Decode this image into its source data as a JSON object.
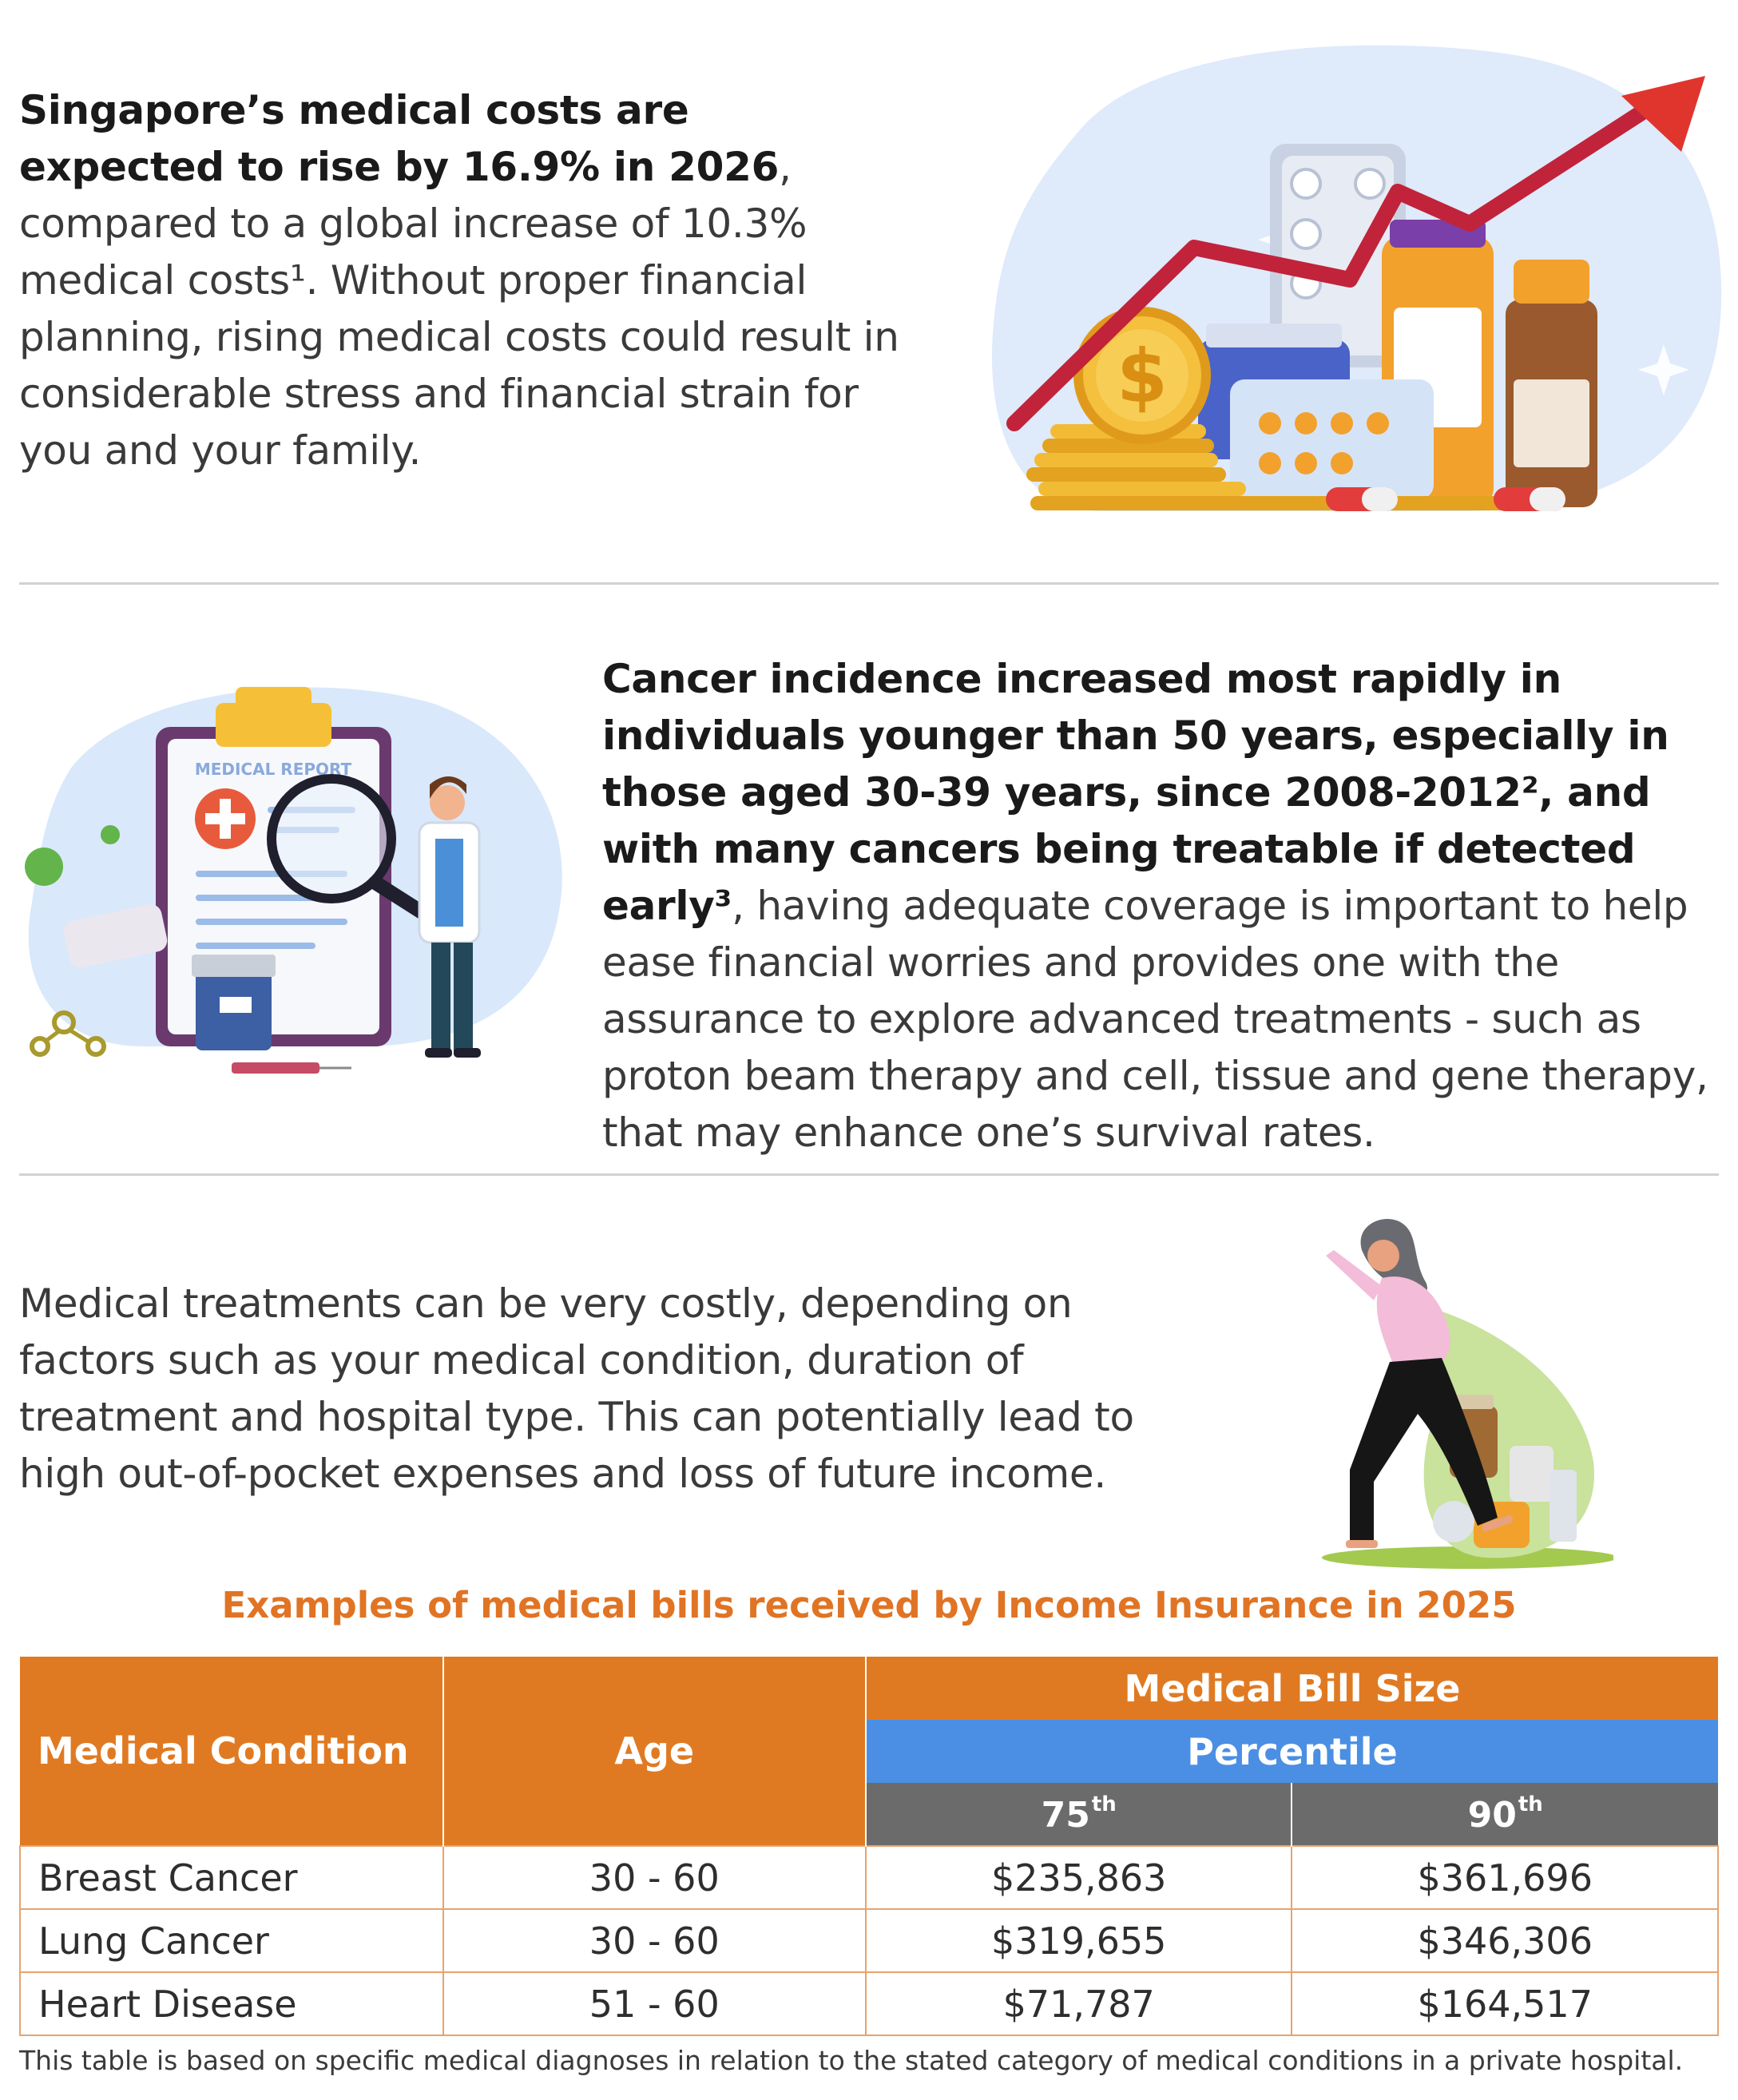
{
  "section1": {
    "bold": "Singapore’s medical costs are expected to rise by 16.9% in 2026",
    "rest": ", compared to a global increase of 10.3% medical costs¹. Without proper financial planning, rising medical costs could result in considerable stress and financial strain for you and your family."
  },
  "section2": {
    "bold1": "Cancer incidence increased most rapidly in individuals younger than 50 years, especially in those aged 30-39 years, since 2008-2012², and with many cancers being treatable if detected early³",
    "rest": ", having adequate coverage is important to help ease financial worries and provides one with the assurance to explore advanced treatments - such as proton beam therapy and cell, tissue and gene therapy, that may enhance one’s survival rates.",
    "clipboard_label": "MEDICAL REPORT",
    "coin_symbol": "$"
  },
  "section3": {
    "text": "Medical treatments can be very costly, depending on factors such as your medical condition, duration of treatment and hospital type. This can potentially lead to high out-of-pocket expenses and loss of future income."
  },
  "table": {
    "caption": "Examples of medical bills received by Income Insurance in 2025",
    "headers": {
      "condition": "Medical Condition",
      "age": "Age",
      "bill_size": "Medical Bill Size",
      "percentile": "Percentile",
      "p75": "75",
      "p90": "90",
      "suffix": "th"
    },
    "rows": [
      {
        "condition": "Breast Cancer",
        "age": "30 - 60",
        "p75": "$235,863",
        "p90": "$361,696"
      },
      {
        "condition": "Lung Cancer",
        "age": "30 - 60",
        "p75": "$319,655",
        "p90": "$346,306"
      },
      {
        "condition": "Heart Disease",
        "age": "51 - 60",
        "p75": "$71,787",
        "p90": "$164,517"
      }
    ],
    "footnote": "This table is based on specific medical diagnoses in relation to the stated category of medical conditions in a private hospital."
  },
  "colors": {
    "accent_orange": "#e07a22",
    "percentile_blue": "#4a8fe3",
    "header_grey": "#6b6b6b",
    "divider": "#d2d2d2"
  },
  "icons": [
    "rising-cost-illustration",
    "medical-report-illustration",
    "woman-carrying-medicine-illustration"
  ]
}
